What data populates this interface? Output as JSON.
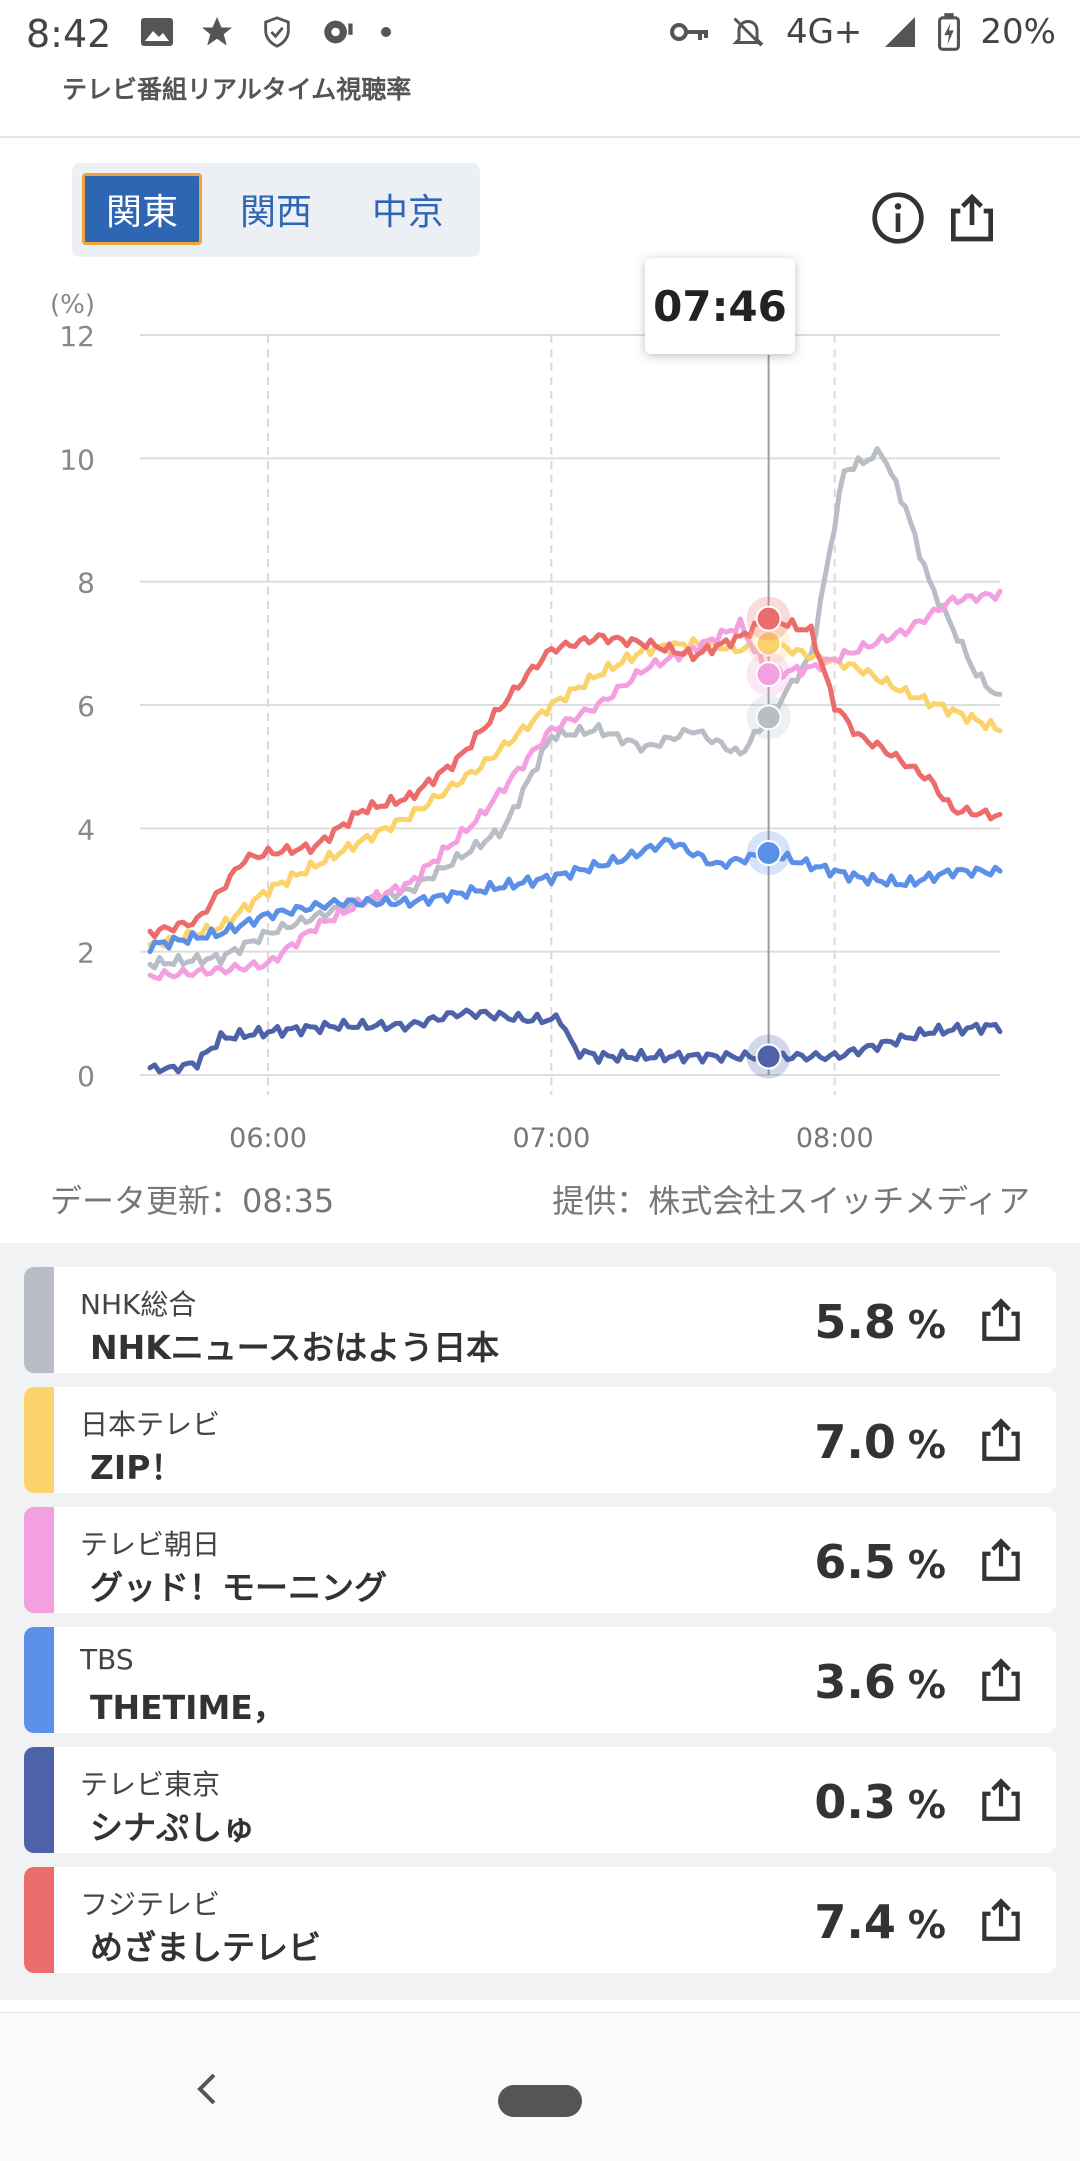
{
  "status_bar": {
    "time": "8:42",
    "network": "4G+",
    "battery": "20%"
  },
  "app": {
    "title": "テレビ番組リアルタイム視聴率"
  },
  "regions": {
    "tabs": [
      "関東",
      "関西",
      "中京"
    ],
    "selected": "関東"
  },
  "chart_data": {
    "type": "line",
    "ylabel": "(%)",
    "ylim": [
      0,
      12
    ],
    "yticks": [
      0,
      2,
      4,
      6,
      8,
      10,
      12
    ],
    "xlim": [
      "05:35",
      "08:35"
    ],
    "xticks": [
      "06:00",
      "07:00",
      "08:00"
    ],
    "cursor_time": "07:46",
    "grid": true,
    "series": [
      {
        "name": "NHK総合",
        "color": "#b9bec6",
        "x": [
          "05:35",
          "05:50",
          "06:00",
          "06:15",
          "06:30",
          "06:40",
          "06:50",
          "07:00",
          "07:10",
          "07:20",
          "07:30",
          "07:40",
          "07:46",
          "07:55",
          "08:02",
          "08:10",
          "08:15",
          "08:20",
          "08:30",
          "08:35"
        ],
        "y": [
          1.8,
          1.9,
          2.3,
          2.7,
          3.0,
          3.5,
          4.0,
          5.5,
          5.6,
          5.3,
          5.6,
          5.2,
          5.8,
          6.8,
          9.8,
          10.1,
          9.2,
          8.0,
          6.5,
          6.1
        ]
      },
      {
        "name": "日本テレビ",
        "color": "#fbd36b",
        "x": [
          "05:35",
          "05:50",
          "06:00",
          "06:15",
          "06:30",
          "06:45",
          "07:00",
          "07:10",
          "07:20",
          "07:30",
          "07:40",
          "07:46",
          "07:55",
          "08:05",
          "08:15",
          "08:25",
          "08:35"
        ],
        "y": [
          2.1,
          2.4,
          3.0,
          3.6,
          4.2,
          5.0,
          6.0,
          6.5,
          6.9,
          7.0,
          6.9,
          7.0,
          6.8,
          6.6,
          6.2,
          5.9,
          5.6
        ]
      },
      {
        "name": "テレビ朝日",
        "color": "#f4a0e0",
        "x": [
          "05:35",
          "05:50",
          "06:00",
          "06:10",
          "06:20",
          "06:30",
          "06:45",
          "07:00",
          "07:10",
          "07:20",
          "07:30",
          "07:40",
          "07:46",
          "07:55",
          "08:05",
          "08:15",
          "08:25",
          "08:35"
        ],
        "y": [
          1.6,
          1.7,
          1.8,
          2.4,
          2.8,
          3.1,
          4.2,
          5.6,
          6.0,
          6.6,
          6.9,
          7.3,
          6.5,
          6.6,
          6.9,
          7.2,
          7.7,
          7.8
        ]
      },
      {
        "name": "TBS",
        "color": "#5b8fe8",
        "x": [
          "05:35",
          "05:50",
          "06:00",
          "06:15",
          "06:30",
          "06:45",
          "07:00",
          "07:15",
          "07:25",
          "07:30",
          "07:35",
          "07:46",
          "07:55",
          "08:05",
          "08:15",
          "08:25",
          "08:35"
        ],
        "y": [
          2.1,
          2.3,
          2.6,
          2.8,
          2.8,
          3.0,
          3.2,
          3.5,
          3.8,
          3.6,
          3.4,
          3.6,
          3.4,
          3.2,
          3.1,
          3.3,
          3.3
        ]
      },
      {
        "name": "テレビ東京",
        "color": "#4d62a8",
        "x": [
          "05:35",
          "05:40",
          "05:45",
          "05:50",
          "06:00",
          "06:15",
          "06:30",
          "06:40",
          "06:45",
          "06:55",
          "07:02",
          "07:05",
          "07:10",
          "07:20",
          "07:30",
          "07:40",
          "07:46",
          "08:00",
          "08:10",
          "08:20",
          "08:35"
        ],
        "y": [
          0.1,
          0.1,
          0.2,
          0.6,
          0.7,
          0.8,
          0.8,
          1.0,
          1.0,
          0.9,
          0.9,
          0.4,
          0.3,
          0.3,
          0.3,
          0.3,
          0.3,
          0.3,
          0.5,
          0.7,
          0.8
        ]
      },
      {
        "name": "フジテレビ",
        "color": "#ec6c6c",
        "x": [
          "05:35",
          "05:45",
          "05:55",
          "06:00",
          "06:10",
          "06:20",
          "06:30",
          "06:40",
          "06:55",
          "07:00",
          "07:10",
          "07:20",
          "07:30",
          "07:40",
          "07:46",
          "07:55",
          "08:00",
          "08:05",
          "08:10",
          "08:20",
          "08:25",
          "08:35"
        ],
        "y": [
          2.3,
          2.5,
          3.5,
          3.6,
          3.7,
          4.3,
          4.5,
          5.1,
          6.5,
          6.9,
          7.1,
          7.0,
          6.8,
          7.1,
          7.4,
          7.2,
          6.0,
          5.5,
          5.3,
          4.8,
          4.3,
          4.2
        ]
      }
    ]
  },
  "footer": {
    "updated": "データ更新：08:35",
    "provider": "提供：株式会社スイッチメディア"
  },
  "channels": [
    {
      "station": "NHK総合",
      "program": "NHKニュースおはよう日本",
      "rating": "5.8",
      "unit": "%"
    },
    {
      "station": "日本テレビ",
      "program": "ZIP！",
      "rating": "7.0",
      "unit": "%"
    },
    {
      "station": "テレビ朝日",
      "program": "グッド！モーニング",
      "rating": "6.5",
      "unit": "%"
    },
    {
      "station": "TBS",
      "program": "THETIME，",
      "rating": "3.6",
      "unit": "%"
    },
    {
      "station": "テレビ東京",
      "program": "シナぷしゅ",
      "rating": "0.3",
      "unit": "%"
    },
    {
      "station": "フジテレビ",
      "program": "めざましテレビ",
      "rating": "7.4",
      "unit": "%"
    }
  ]
}
